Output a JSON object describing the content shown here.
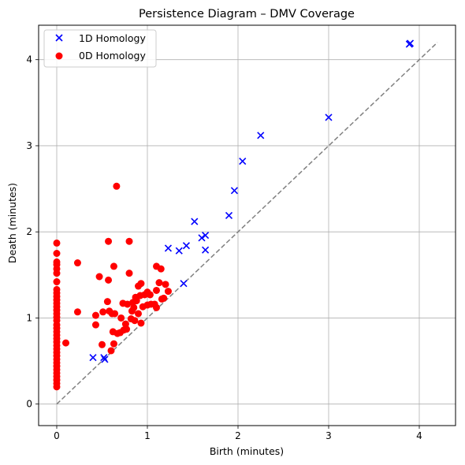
{
  "chart_data": {
    "type": "scatter",
    "title": "Persistence Diagram – DMV Coverage",
    "xlabel": "Birth (minutes)",
    "ylabel": "Death (minutes)",
    "xlim": [
      -0.2,
      4.4
    ],
    "ylim": [
      -0.25,
      4.4
    ],
    "x_ticks": [
      0,
      1,
      2,
      3,
      4
    ],
    "y_ticks": [
      0,
      1,
      2,
      3,
      4
    ],
    "x_tick_labels": [
      "0",
      "1",
      "2",
      "3",
      "4"
    ],
    "y_tick_labels": [
      "0",
      "1",
      "2",
      "3",
      "4"
    ],
    "grid": true,
    "legend_position": "top-left",
    "diagonal": {
      "from": [
        0,
        0
      ],
      "to": [
        4.2,
        4.2
      ],
      "style": "dashed",
      "color": "#808080"
    },
    "series": [
      {
        "name": "1D Homology",
        "marker": "x",
        "color": "#0000ff",
        "points": [
          [
            0.4,
            0.54
          ],
          [
            0.52,
            0.54
          ],
          [
            0.53,
            0.52
          ],
          [
            1.4,
            1.4
          ],
          [
            1.23,
            1.81
          ],
          [
            1.35,
            1.78
          ],
          [
            1.43,
            1.84
          ],
          [
            1.6,
            1.93
          ],
          [
            1.64,
            1.96
          ],
          [
            1.64,
            1.79
          ],
          [
            1.52,
            2.12
          ],
          [
            1.9,
            2.19
          ],
          [
            1.96,
            2.48
          ],
          [
            2.05,
            2.82
          ],
          [
            2.25,
            3.12
          ],
          [
            3.0,
            3.33
          ],
          [
            3.89,
            4.18
          ],
          [
            3.9,
            4.19
          ]
        ]
      },
      {
        "name": "0D Homology",
        "marker": "o",
        "color": "#ff0000",
        "points": [
          [
            0,
            0.2
          ],
          [
            0,
            0.24
          ],
          [
            0,
            0.28
          ],
          [
            0,
            0.32
          ],
          [
            0,
            0.36
          ],
          [
            0,
            0.4
          ],
          [
            0,
            0.44
          ],
          [
            0,
            0.48
          ],
          [
            0,
            0.52
          ],
          [
            0,
            0.56
          ],
          [
            0,
            0.6
          ],
          [
            0,
            0.64
          ],
          [
            0,
            0.68
          ],
          [
            0,
            0.72
          ],
          [
            0,
            0.76
          ],
          [
            0,
            0.8
          ],
          [
            0,
            0.84
          ],
          [
            0,
            0.88
          ],
          [
            0,
            0.92
          ],
          [
            0,
            0.97
          ],
          [
            0,
            1.01
          ],
          [
            0,
            1.05
          ],
          [
            0,
            1.09
          ],
          [
            0,
            1.13
          ],
          [
            0,
            1.17
          ],
          [
            0,
            1.21
          ],
          [
            0,
            1.25
          ],
          [
            0,
            1.29
          ],
          [
            0,
            1.33
          ],
          [
            0,
            1.42
          ],
          [
            0,
            1.52
          ],
          [
            0,
            1.57
          ],
          [
            0,
            1.62
          ],
          [
            0,
            1.65
          ],
          [
            0,
            1.75
          ],
          [
            0,
            1.87
          ],
          [
            0.1,
            0.71
          ],
          [
            0.23,
            1.07
          ],
          [
            0.23,
            1.64
          ],
          [
            0.43,
            1.03
          ],
          [
            0.43,
            0.92
          ],
          [
            0.47,
            1.48
          ],
          [
            0.5,
            0.69
          ],
          [
            0.51,
            1.07
          ],
          [
            0.56,
            1.19
          ],
          [
            0.57,
            1.44
          ],
          [
            0.57,
            1.89
          ],
          [
            0.58,
            1.08
          ],
          [
            0.6,
            0.62
          ],
          [
            0.61,
            1.05
          ],
          [
            0.62,
            0.84
          ],
          [
            0.63,
            0.7
          ],
          [
            0.63,
            1.6
          ],
          [
            0.64,
            1.05
          ],
          [
            0.66,
            2.53
          ],
          [
            0.67,
            0.82
          ],
          [
            0.7,
            0.83
          ],
          [
            0.71,
            1.0
          ],
          [
            0.73,
            1.17
          ],
          [
            0.74,
            0.86
          ],
          [
            0.76,
            0.93
          ],
          [
            0.77,
            0.87
          ],
          [
            0.78,
            1.16
          ],
          [
            0.8,
            1.52
          ],
          [
            0.8,
            1.89
          ],
          [
            0.82,
            0.99
          ],
          [
            0.83,
            1.08
          ],
          [
            0.84,
            1.18
          ],
          [
            0.85,
            1.12
          ],
          [
            0.86,
            0.97
          ],
          [
            0.87,
            1.24
          ],
          [
            0.88,
            1.2
          ],
          [
            0.9,
            1.05
          ],
          [
            0.9,
            1.37
          ],
          [
            0.92,
            1.26
          ],
          [
            0.93,
            1.4
          ],
          [
            0.93,
            0.94
          ],
          [
            0.95,
            1.13
          ],
          [
            0.97,
            1.27
          ],
          [
            1.0,
            1.15
          ],
          [
            1.0,
            1.3
          ],
          [
            1.03,
            1.27
          ],
          [
            1.04,
            1.16
          ],
          [
            1.08,
            1.16
          ],
          [
            1.1,
            1.12
          ],
          [
            1.1,
            1.32
          ],
          [
            1.1,
            1.6
          ],
          [
            1.13,
            1.41
          ],
          [
            1.15,
            1.57
          ],
          [
            1.16,
            1.22
          ],
          [
            1.18,
            1.23
          ],
          [
            1.2,
            1.39
          ],
          [
            1.23,
            1.31
          ]
        ]
      }
    ]
  }
}
